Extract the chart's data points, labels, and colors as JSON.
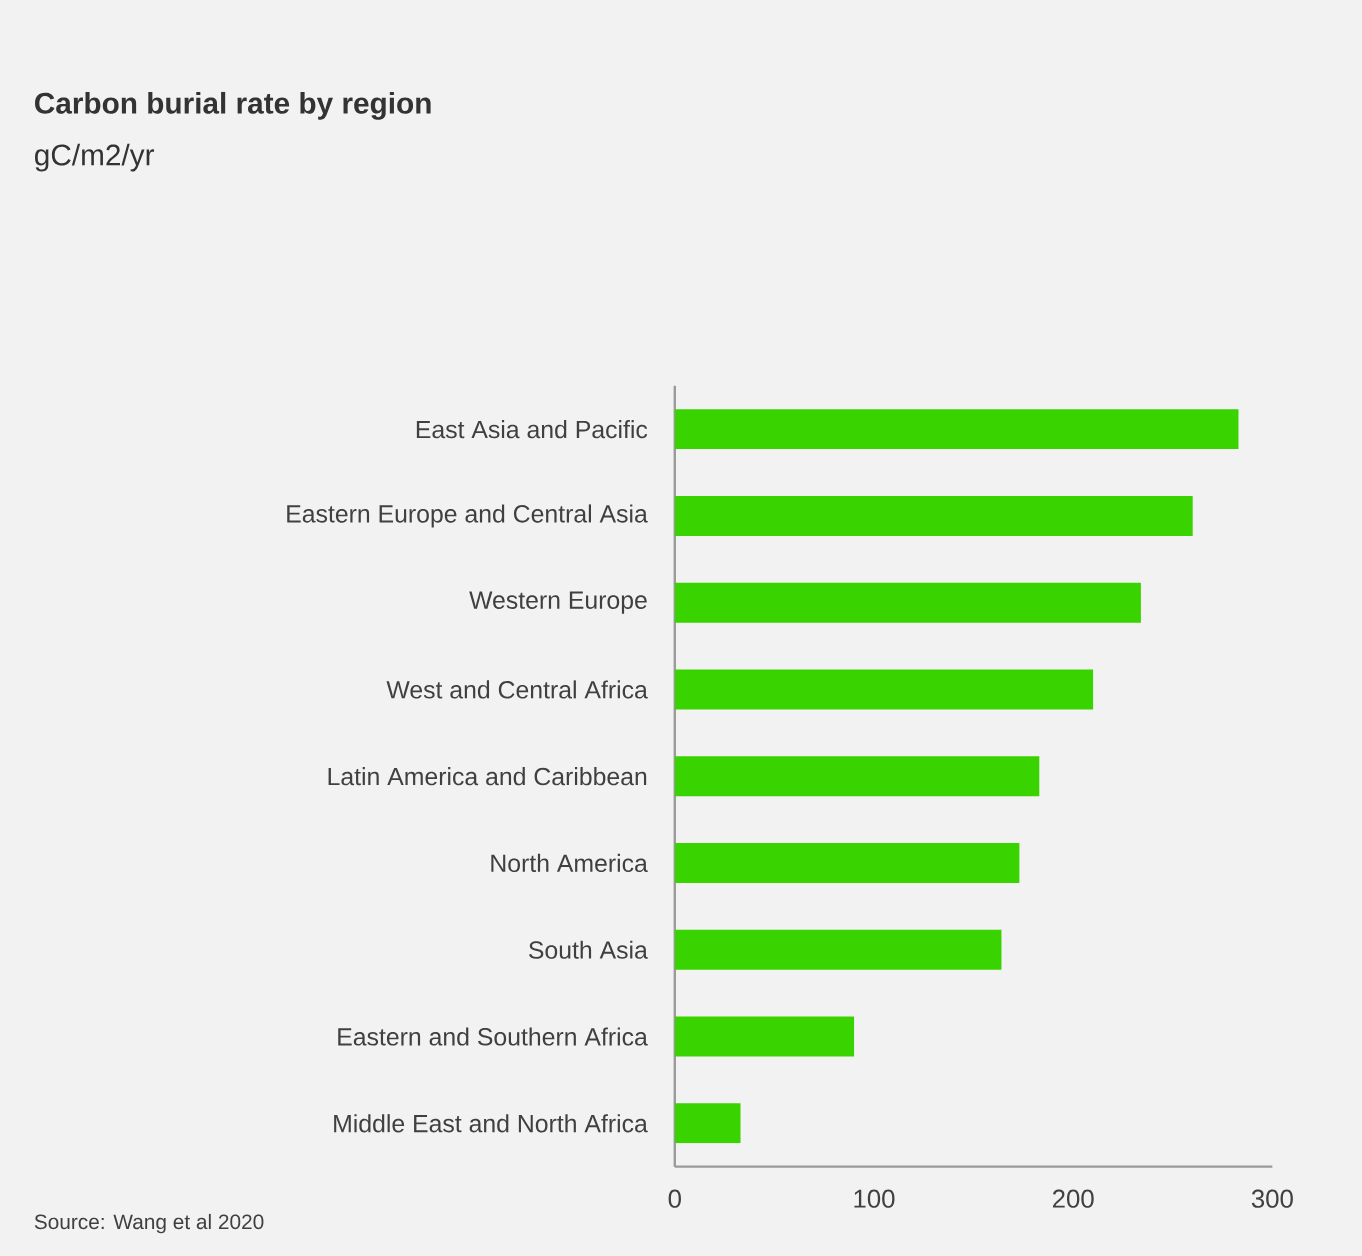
{
  "chart_data": {
    "type": "bar",
    "orientation": "horizontal",
    "title": "Carbon burial rate by region",
    "subtitle": "gC/m2/yr",
    "categories": [
      "East Asia and Pacific",
      "Eastern Europe and Central Asia",
      "Western Europe",
      "West and Central Africa",
      "Latin America and Caribbean",
      "North America",
      "South Asia",
      "Eastern and Southern Africa",
      "Middle East and North Africa"
    ],
    "values": [
      283,
      260,
      234,
      210,
      183,
      173,
      164,
      90,
      33
    ],
    "color": "#39d300",
    "xlim": [
      0,
      300
    ],
    "xticks": [
      0,
      100,
      200,
      300
    ],
    "annotations": [
      "Source: Wang et al 2020"
    ]
  }
}
